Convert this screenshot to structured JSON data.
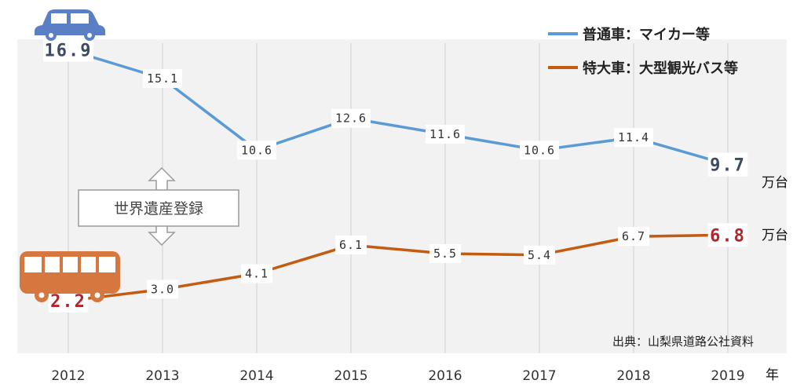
{
  "chart_data": {
    "type": "line",
    "categories": [
      "2012",
      "2013",
      "2014",
      "2015",
      "2016",
      "2017",
      "2018",
      "2019"
    ],
    "series": [
      {
        "name": "普通車：マイカー等",
        "color": "#5b9bd5",
        "labels": [
          "16.9",
          "15.1",
          "10.6",
          "12.6",
          "11.6",
          "10.6",
          "11.4",
          "9.7"
        ],
        "values": [
          16.9,
          15.1,
          10.6,
          12.6,
          11.6,
          10.6,
          11.4,
          9.7
        ]
      },
      {
        "name": "特大車：大型観光バス等",
        "color": "#c55a11",
        "labels": [
          "2.2",
          "3.0",
          "4.1",
          "6.1",
          "5.5",
          "5.4",
          "6.7",
          "6.8"
        ],
        "values": [
          2.2,
          3.0,
          4.1,
          6.1,
          5.5,
          5.4,
          6.7,
          6.8
        ]
      }
    ],
    "unit": "万台",
    "x_unit": "年",
    "source": "出典：山梨県道路公社資料",
    "annotation": "世界遺産登録",
    "highlight_colors": {
      "car_value": "#3d4a63",
      "bus_value": "#b5232a"
    },
    "icons": [
      "car-icon",
      "bus-icon",
      "double-arrow-icon"
    ],
    "legend_position": "top-right",
    "grid": "vertical"
  }
}
